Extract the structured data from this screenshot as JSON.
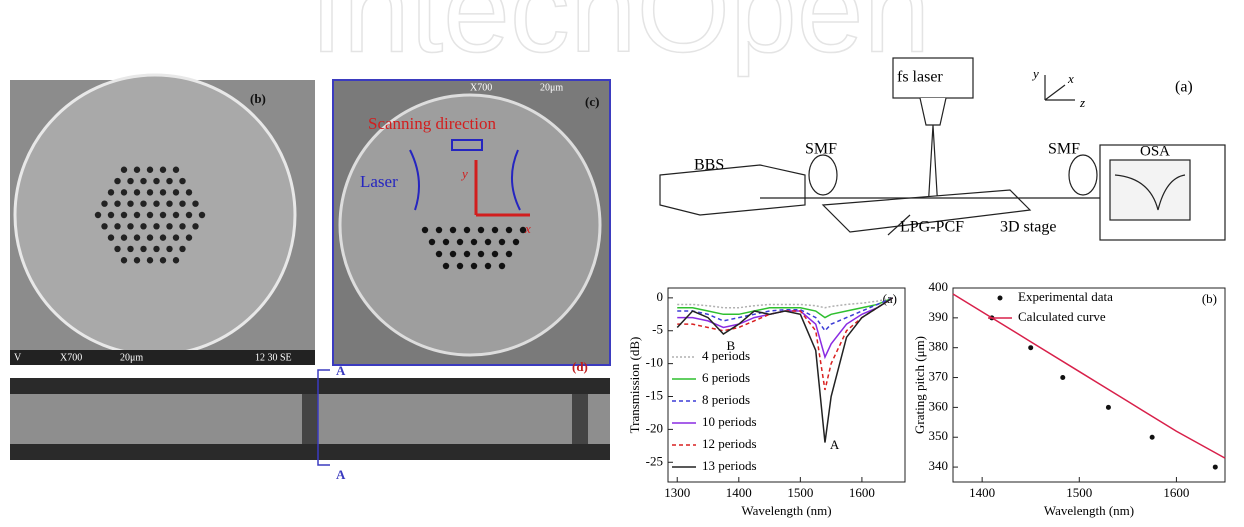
{
  "watermark": "IntechOpen",
  "panel_b": {
    "label": "(b)",
    "footer": [
      "V",
      "X700",
      "20μm",
      "12 30 SE"
    ]
  },
  "panel_c": {
    "label": "(c)",
    "header": [
      "X700",
      "20μm"
    ],
    "scanning": "Scanning direction",
    "laser": "Laser",
    "axis_y": "y",
    "axis_x": "x"
  },
  "panel_d": {
    "label": "(d)",
    "section_top": "A",
    "section_bottom": "A"
  },
  "schematic": {
    "label": "(a)",
    "fs_laser": "fs laser",
    "bbs": "BBS",
    "smf_left": "SMF",
    "smf_right": "SMF",
    "osa": "OSA",
    "lpg": "LPG-PCF",
    "stage": "3D stage",
    "axis_y": "y",
    "axis_x": "x",
    "axis_z": "z"
  },
  "chart_data": [
    {
      "type": "line",
      "panel": "(a)",
      "x_label": "Wavelength (nm)",
      "y_label": "Transmission (dB)",
      "x": [
        1300,
        1325,
        1350,
        1375,
        1400,
        1425,
        1450,
        1475,
        1500,
        1525,
        1540,
        1550,
        1575,
        1600,
        1625,
        1650
      ],
      "xlim": [
        1285,
        1670
      ],
      "xticks": [
        1300,
        1400,
        1500,
        1600
      ],
      "ylim": [
        -28,
        1.5
      ],
      "yticks": [
        0,
        -5,
        -10,
        -15,
        -20,
        -25
      ],
      "legend": "lower left",
      "annotations": [
        {
          "text": "A",
          "x": 1548,
          "y": -22.5
        },
        {
          "text": "B",
          "x": 1380,
          "y": -7.5
        }
      ],
      "series": [
        {
          "name": "4 periods",
          "color": "#b0b0b0",
          "dash": "2,2",
          "values": [
            -1,
            -1,
            -1.2,
            -1.5,
            -1.5,
            -1.2,
            -1,
            -1,
            -1,
            -1.2,
            -1.5,
            -1.3,
            -1,
            -0.8,
            -0.5,
            0
          ]
        },
        {
          "name": "6 periods",
          "color": "#2fbf2f",
          "dash": "",
          "values": [
            -1.5,
            -1.5,
            -2,
            -2.5,
            -2.5,
            -2,
            -1.5,
            -1.5,
            -1.5,
            -2,
            -3,
            -2.5,
            -2,
            -1.5,
            -1,
            0
          ]
        },
        {
          "name": "8 periods",
          "color": "#3b3bd6",
          "dash": "4,3",
          "values": [
            -2,
            -2,
            -2.5,
            -3.5,
            -3,
            -2.5,
            -2,
            -1.8,
            -1.8,
            -3,
            -5,
            -4,
            -3,
            -2,
            -1,
            0
          ]
        },
        {
          "name": "10 periods",
          "color": "#8a2be2",
          "dash": "",
          "values": [
            -3,
            -3,
            -3.5,
            -4.5,
            -4,
            -3,
            -2.5,
            -2,
            -2,
            -4,
            -9,
            -7,
            -4,
            -2.5,
            -1.5,
            0
          ]
        },
        {
          "name": "12 periods",
          "color": "#d92020",
          "dash": "4,3",
          "values": [
            -4,
            -4,
            -4.5,
            -5,
            -4.5,
            -3.5,
            -2.5,
            -2,
            -2,
            -5,
            -14,
            -10,
            -5,
            -3,
            -1.5,
            0
          ]
        },
        {
          "name": "13 periods",
          "color": "#222222",
          "dash": "",
          "values": [
            -4.5,
            -2,
            -3,
            -5.5,
            -4,
            -2,
            -2.5,
            -2,
            -2.5,
            -8,
            -22,
            -15,
            -6,
            -3,
            -1.5,
            0
          ]
        }
      ]
    },
    {
      "type": "line",
      "panel": "(b)",
      "x_label": "Wavelength (nm)",
      "y_label": "Grating pitch (μm)",
      "xlim": [
        1370,
        1650
      ],
      "xticks": [
        1400,
        1500,
        1600
      ],
      "ylim": [
        335,
        400
      ],
      "yticks": [
        340,
        350,
        360,
        370,
        380,
        390,
        400
      ],
      "legend": "upper right",
      "series": [
        {
          "name": "Experimental data",
          "color": "#111111",
          "kind": "scatter",
          "x": [
            1410,
            1450,
            1483,
            1530,
            1575,
            1640
          ],
          "values": [
            390,
            380,
            370,
            360,
            350,
            340
          ]
        },
        {
          "name": "Calculated curve",
          "color": "#d8204a",
          "kind": "line",
          "x": [
            1370,
            1400,
            1450,
            1500,
            1550,
            1600,
            1650
          ],
          "values": [
            398,
            392,
            382,
            372,
            362,
            352,
            343
          ]
        }
      ]
    }
  ]
}
